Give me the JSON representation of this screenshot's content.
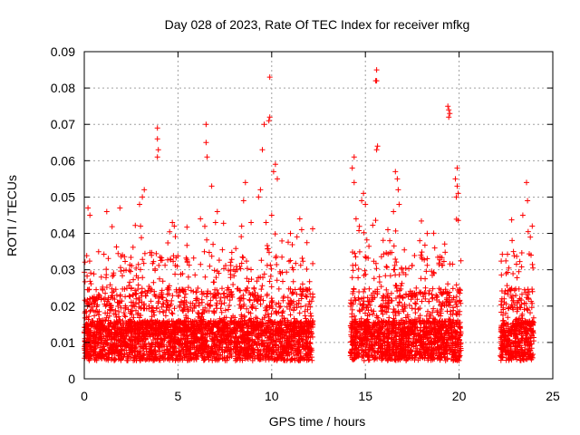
{
  "chart_data": {
    "type": "scatter",
    "title": "Day 028 of 2023, Rate Of TEC Index for receiver mfkg",
    "xlabel": "GPS time / hours",
    "ylabel": "ROTI / TECUs",
    "xlim": [
      0,
      25
    ],
    "ylim": [
      0,
      0.09
    ],
    "x_ticks": [
      0,
      5,
      10,
      15,
      20,
      25
    ],
    "x_tick_labels": [
      "0",
      "5",
      "10",
      "15",
      "20",
      "25"
    ],
    "y_ticks": [
      0,
      0.01,
      0.02,
      0.03,
      0.04,
      0.05,
      0.06,
      0.07,
      0.08,
      0.09
    ],
    "y_tick_labels": [
      "0",
      "0.01",
      "0.02",
      "0.03",
      "0.04",
      "0.05",
      "0.06",
      "0.07",
      "0.08",
      "0.09"
    ],
    "grid": true,
    "marker": "+",
    "color": "#ff0000",
    "data_segments": [
      {
        "start": 0.0,
        "end": 12.2
      },
      {
        "start": 14.2,
        "end": 20.1
      },
      {
        "start": 22.2,
        "end": 24.0
      }
    ],
    "points": [
      [
        3.9,
        0.069
      ],
      [
        3.9,
        0.066
      ],
      [
        3.95,
        0.063
      ],
      [
        3.9,
        0.061
      ],
      [
        6.5,
        0.07
      ],
      [
        6.5,
        0.065
      ],
      [
        6.55,
        0.061
      ],
      [
        9.9,
        0.083
      ],
      [
        9.9,
        0.072
      ],
      [
        9.85,
        0.071
      ],
      [
        9.6,
        0.07
      ],
      [
        9.5,
        0.063
      ],
      [
        10.2,
        0.059
      ],
      [
        10.3,
        0.055
      ],
      [
        10.1,
        0.057
      ],
      [
        6.8,
        0.053
      ],
      [
        8.6,
        0.054
      ],
      [
        8.5,
        0.049
      ],
      [
        9.4,
        0.052
      ],
      [
        9.3,
        0.05
      ],
      [
        10.0,
        0.045
      ],
      [
        3.2,
        0.052
      ],
      [
        3.1,
        0.05
      ],
      [
        2.95,
        0.048
      ],
      [
        1.9,
        0.047
      ],
      [
        1.2,
        0.046
      ],
      [
        0.2,
        0.047
      ],
      [
        0.3,
        0.045
      ],
      [
        4.7,
        0.043
      ],
      [
        4.8,
        0.042
      ],
      [
        6.2,
        0.044
      ],
      [
        7.1,
        0.046
      ],
      [
        7.0,
        0.043
      ],
      [
        8.9,
        0.043
      ],
      [
        8.4,
        0.042
      ],
      [
        9.7,
        0.043
      ],
      [
        11.5,
        0.044
      ],
      [
        11.6,
        0.041
      ],
      [
        11.0,
        0.04
      ],
      [
        15.6,
        0.085
      ],
      [
        15.55,
        0.082
      ],
      [
        15.6,
        0.082
      ],
      [
        15.65,
        0.064
      ],
      [
        15.6,
        0.063
      ],
      [
        14.4,
        0.061
      ],
      [
        14.3,
        0.058
      ],
      [
        14.4,
        0.054
      ],
      [
        14.9,
        0.051
      ],
      [
        14.8,
        0.049
      ],
      [
        15.0,
        0.048
      ],
      [
        14.5,
        0.044
      ],
      [
        16.6,
        0.057
      ],
      [
        16.7,
        0.055
      ],
      [
        16.75,
        0.052
      ],
      [
        16.8,
        0.048
      ],
      [
        16.5,
        0.046
      ],
      [
        19.4,
        0.075
      ],
      [
        19.45,
        0.074
      ],
      [
        19.5,
        0.073
      ],
      [
        19.45,
        0.072
      ],
      [
        19.9,
        0.058
      ],
      [
        19.8,
        0.055
      ],
      [
        19.9,
        0.053
      ],
      [
        19.95,
        0.051
      ],
      [
        19.85,
        0.05
      ],
      [
        18.3,
        0.04
      ],
      [
        18.7,
        0.036
      ],
      [
        17.9,
        0.038
      ],
      [
        16.2,
        0.041
      ],
      [
        16.3,
        0.038
      ],
      [
        23.6,
        0.054
      ],
      [
        23.65,
        0.049
      ],
      [
        23.4,
        0.045
      ],
      [
        23.9,
        0.042
      ],
      [
        23.8,
        0.039
      ],
      [
        22.9,
        0.035
      ]
    ]
  }
}
